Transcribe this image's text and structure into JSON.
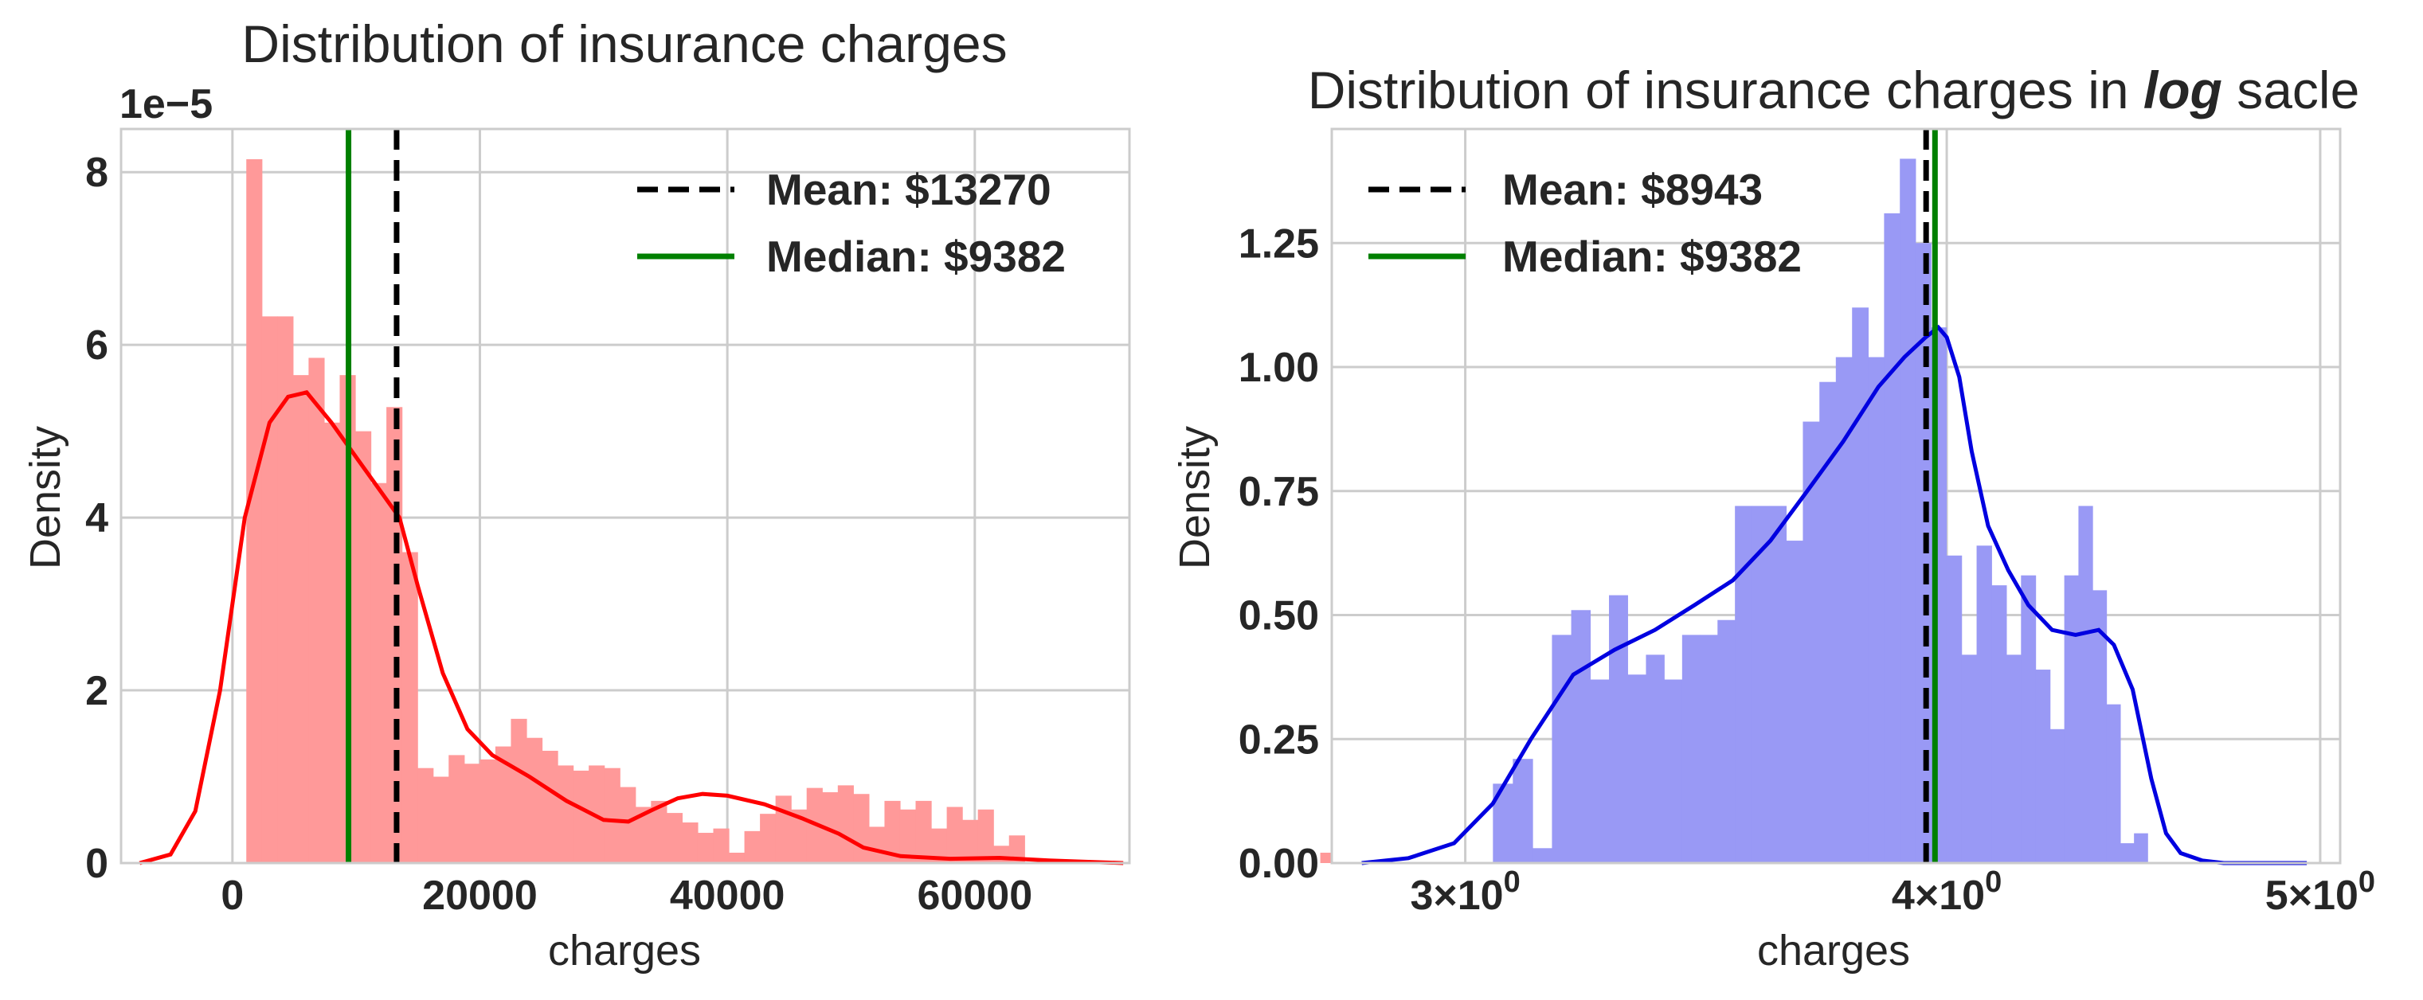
{
  "colors": {
    "left_hist": "#ff9999",
    "left_kde": "#ff0000",
    "right_hist": "#9999f5",
    "right_kde": "#0000e0",
    "mean_line": "#000000",
    "median_line": "#008000",
    "grid": "#cccccc",
    "frame": "#cccccc"
  },
  "chart_data": [
    {
      "type": "bar",
      "title": "Distribution of insurance charges",
      "xlabel": "charges",
      "ylabel": "Density",
      "offset_text": "1e−5",
      "xlim": [
        -9000,
        72500
      ],
      "ylim": [
        0,
        8.5
      ],
      "y_scale_factor": 1e-05,
      "grid": true,
      "xticks": [
        0,
        20000,
        40000,
        60000
      ],
      "xtick_labels": [
        "0",
        "20000",
        "40000",
        "60000"
      ],
      "yticks": [
        0,
        2,
        4,
        6,
        8
      ],
      "ytick_labels": [
        "0",
        "2",
        "4",
        "6",
        "8"
      ],
      "legend_position": "top-right",
      "legend": [
        {
          "label": "Mean: $13270",
          "style": "dashed",
          "color": "#000000"
        },
        {
          "label": "Median: $9382",
          "style": "solid",
          "color": "#008000"
        }
      ],
      "vlines": [
        {
          "name": "mean",
          "x": 13270,
          "style": "dashed"
        },
        {
          "name": "median",
          "x": 9382,
          "style": "solid"
        }
      ],
      "histogram": {
        "bin_start": 1122,
        "bin_width": 1258,
        "densities": [
          8.15,
          6.33,
          6.33,
          5.65,
          5.85,
          5.1,
          5.65,
          5.0,
          4.4,
          5.28,
          3.6,
          1.1,
          1.0,
          1.25,
          1.15,
          1.2,
          1.35,
          1.67,
          1.45,
          1.3,
          1.13,
          1.07,
          1.13,
          1.1,
          0.88,
          0.65,
          0.72,
          0.58,
          0.47,
          0.35,
          0.4,
          0.12,
          0.37,
          0.57,
          0.78,
          0.62,
          0.87,
          0.82,
          0.9,
          0.8,
          0.42,
          0.72,
          0.62,
          0.72,
          0.4,
          0.65,
          0.5,
          0.62,
          0.2,
          0.32,
          0.0,
          0.0,
          0.0,
          0.0,
          0.0,
          0.0,
          0.0,
          0.0,
          0.0,
          0.0,
          0.0,
          0.0,
          0.0,
          0.0,
          0.0,
          0.0,
          0.0,
          0.0,
          0.0,
          0.12
        ]
      },
      "kde": {
        "x": [
          -7500,
          -5000,
          -3000,
          -1000,
          1000,
          3000,
          4500,
          6000,
          8000,
          10000,
          12000,
          13500,
          15000,
          17000,
          19000,
          21000,
          24000,
          27000,
          30000,
          32000,
          34000,
          36000,
          38000,
          40000,
          43000,
          46000,
          49000,
          51000,
          54000,
          58000,
          62000,
          66000,
          72000
        ],
        "y": [
          0.0,
          0.1,
          0.6,
          2.0,
          4.0,
          5.1,
          5.4,
          5.45,
          5.1,
          4.7,
          4.3,
          4.0,
          3.2,
          2.2,
          1.55,
          1.25,
          1.0,
          0.72,
          0.5,
          0.48,
          0.62,
          0.75,
          0.8,
          0.78,
          0.68,
          0.52,
          0.34,
          0.18,
          0.08,
          0.05,
          0.06,
          0.03,
          0.0
        ]
      }
    },
    {
      "type": "bar",
      "title": "Distribution of insurance charges in ",
      "title_emphasis": "log",
      "title_suffix": " sacle",
      "xlabel": "charges",
      "ylabel": "Density",
      "x_scale": "log",
      "xlim": [
        2.77,
        5.06
      ],
      "ylim": [
        0,
        1.48
      ],
      "grid": true,
      "xticks": [
        3,
        4,
        5
      ],
      "xtick_labels": [
        {
          "base": "3×10",
          "exp": "0"
        },
        {
          "base": "4×10",
          "exp": "0"
        },
        {
          "base": "5×10",
          "exp": "0"
        }
      ],
      "yticks": [
        0.0,
        0.25,
        0.5,
        0.75,
        1.0,
        1.25
      ],
      "ytick_labels": [
        "0.00",
        "0.25",
        "0.50",
        "0.75",
        "1.00",
        "1.25"
      ],
      "legend_position": "top-left",
      "legend": [
        {
          "label": "Mean: $8943",
          "style": "dashed",
          "color": "#000000"
        },
        {
          "label": "Median: $9382",
          "style": "solid",
          "color": "#008000"
        }
      ],
      "vlines": [
        {
          "name": "mean",
          "x": 3.951,
          "style": "dashed"
        },
        {
          "name": "median",
          "x": 3.972,
          "style": "solid"
        }
      ],
      "histogram": {
        "bin_start": 3.05,
        "bin_width": 0.0365,
        "densities": [
          0.16,
          0.21,
          0.03,
          0.46,
          0.51,
          0.37,
          0.54,
          0.38,
          0.42,
          0.37,
          0.46,
          0.46,
          0.49,
          0.72,
          0.72,
          0.72,
          0.65,
          0.89,
          0.97,
          1.02,
          1.12,
          1.02,
          1.31,
          1.42,
          1.25,
          1.08,
          0.62,
          0.42,
          0.64,
          0.56,
          0.42,
          0.58,
          0.39,
          0.27,
          0.58,
          0.72,
          0.55,
          0.32,
          0.04,
          0.06
        ]
      },
      "kde": {
        "x": [
          2.82,
          2.9,
          2.98,
          3.05,
          3.12,
          3.2,
          3.28,
          3.36,
          3.44,
          3.52,
          3.6,
          3.68,
          3.76,
          3.84,
          3.9,
          3.95,
          3.98,
          4.0,
          4.03,
          4.06,
          4.1,
          4.15,
          4.2,
          4.26,
          4.32,
          4.38,
          4.42,
          4.47,
          4.52,
          4.56,
          4.6,
          4.66,
          4.72,
          4.8,
          4.88,
          4.96
        ],
        "y": [
          0.0,
          0.01,
          0.04,
          0.12,
          0.25,
          0.38,
          0.43,
          0.47,
          0.52,
          0.57,
          0.65,
          0.75,
          0.85,
          0.96,
          1.02,
          1.06,
          1.08,
          1.06,
          0.98,
          0.83,
          0.68,
          0.59,
          0.52,
          0.47,
          0.46,
          0.47,
          0.44,
          0.35,
          0.17,
          0.06,
          0.02,
          0.005,
          0.0,
          0.0,
          0.0,
          0.0
        ]
      }
    }
  ]
}
